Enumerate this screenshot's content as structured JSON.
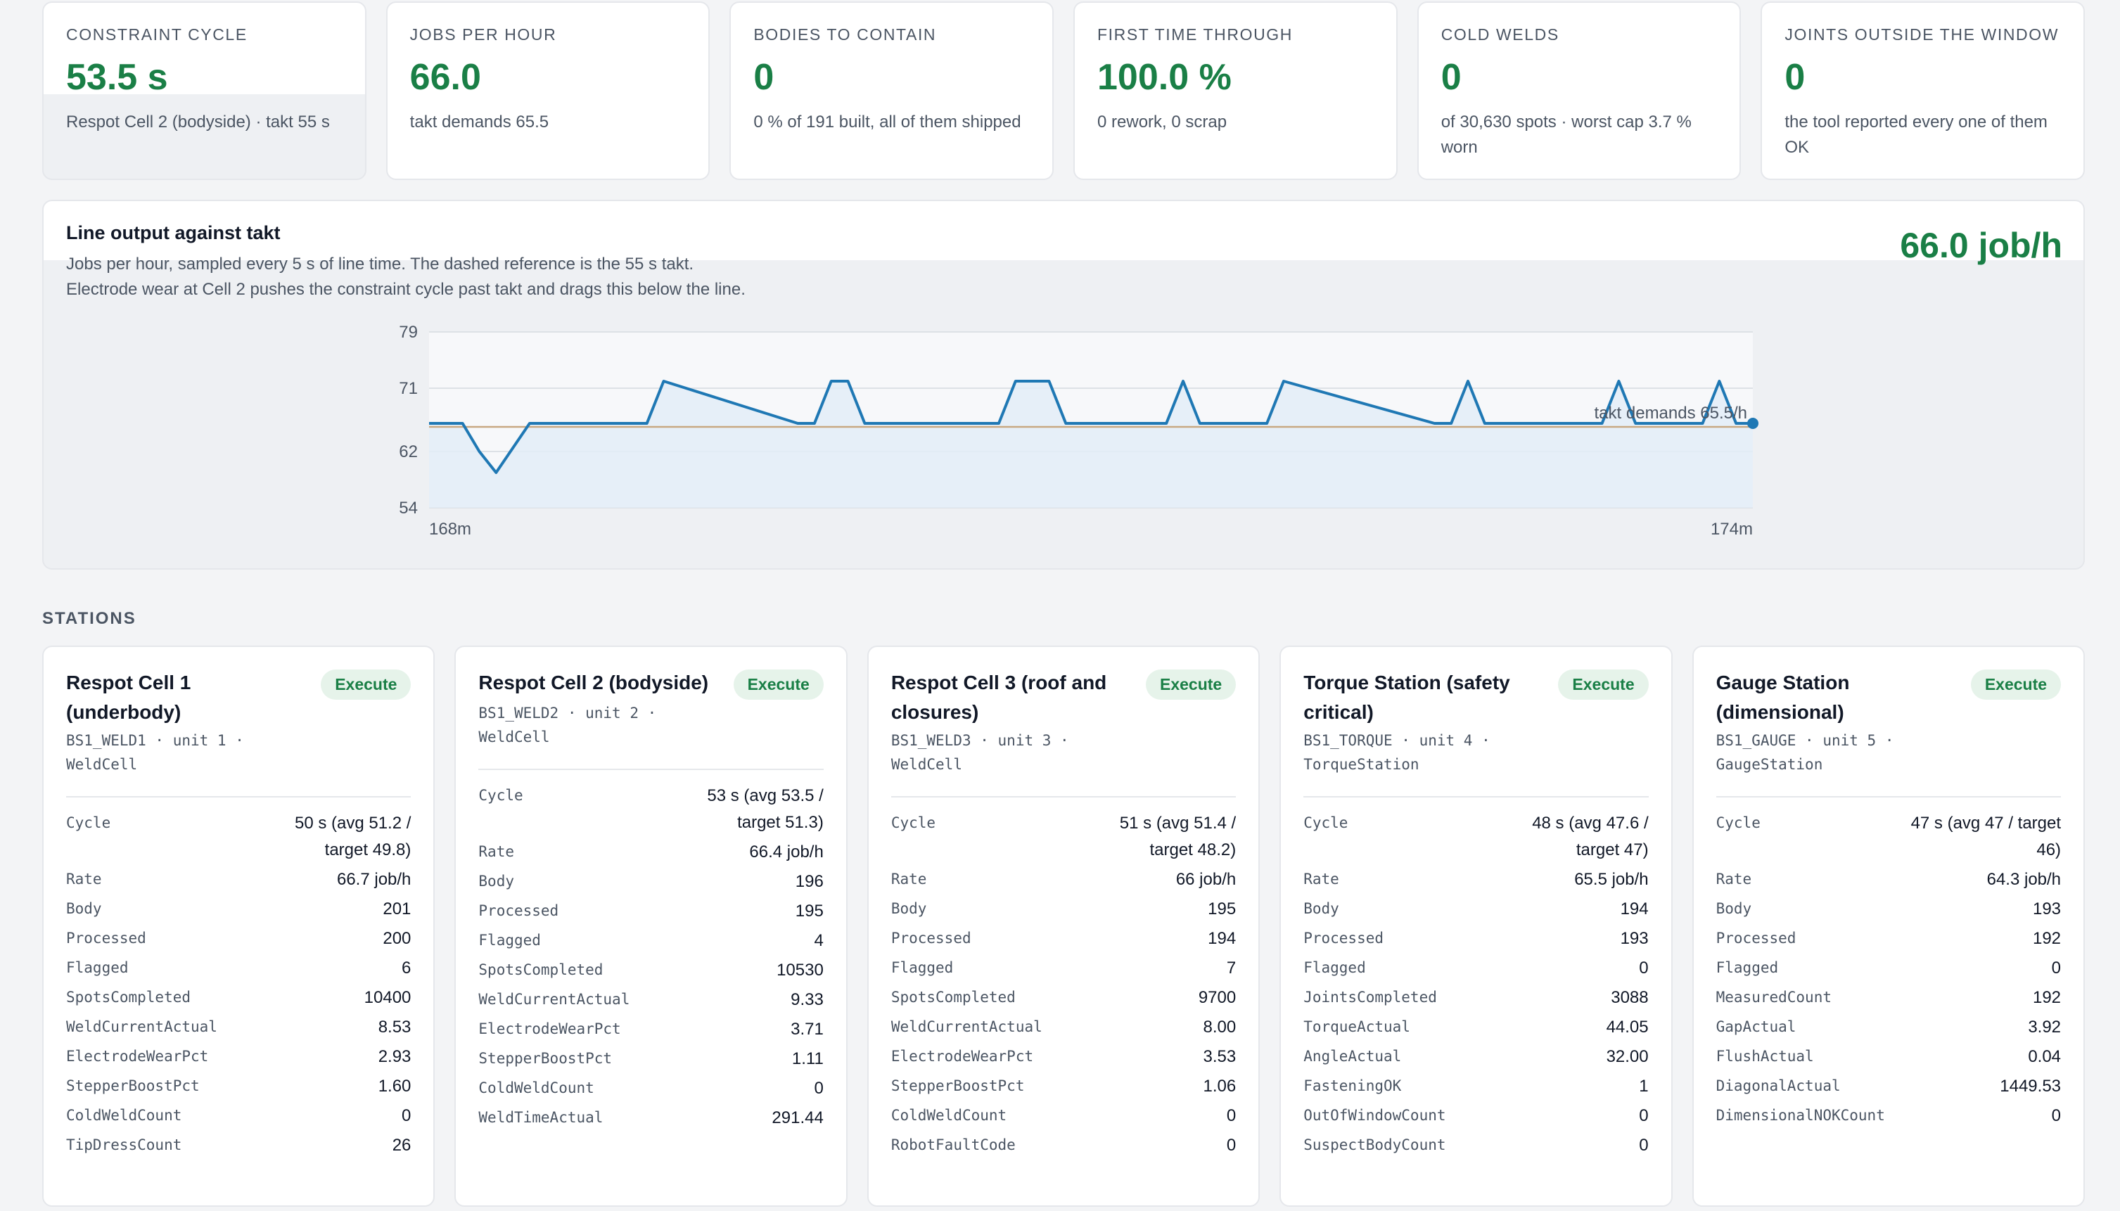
{
  "kpis": [
    {
      "label": "Constraint cycle",
      "value": "53.5 s",
      "sub": "Respot Cell 2 (bodyside) · takt 55 s"
    },
    {
      "label": "Jobs per hour",
      "value": "66.0",
      "sub": "takt demands 65.5"
    },
    {
      "label": "Bodies to contain",
      "value": "0",
      "sub": "0 % of 191 built, all of them shipped"
    },
    {
      "label": "First time through",
      "value": "100.0 %",
      "sub": "0 rework, 0 scrap"
    },
    {
      "label": "Cold welds",
      "value": "0",
      "sub": "of 30,630 spots · worst cap 3.7 % worn"
    },
    {
      "label": "Joints outside the window",
      "value": "0",
      "sub": "the tool reported every one of them OK"
    }
  ],
  "chart_panel": {
    "title": "Line output against takt",
    "subtitle_line1": "Jobs per hour, sampled every 5 s of line time. The dashed reference is the 55 s takt.",
    "subtitle_line2": "Electrode wear at Cell 2 pushes the constraint cycle past takt and drags this below the line.",
    "current_value": "66.0 job/h",
    "takt_label": "takt demands 65.5/h"
  },
  "chart_data": {
    "type": "area",
    "ylim": [
      54,
      79
    ],
    "yticks": [
      "79",
      "71",
      "62",
      "54"
    ],
    "xticks": [
      "168m",
      "174m"
    ],
    "takt": 65.5,
    "series_color": "#1f78b4",
    "takt_color": "#c8a882",
    "x": [
      0,
      2,
      3,
      4,
      6,
      7,
      12,
      13,
      14,
      22,
      23,
      24,
      25,
      26,
      34,
      35,
      36,
      37,
      38,
      44,
      45,
      46,
      49,
      50,
      51,
      60,
      61,
      62,
      63,
      64,
      70,
      71,
      72,
      73,
      74,
      76,
      77,
      78,
      79
    ],
    "values": [
      66,
      66,
      62,
      59,
      66,
      66,
      66,
      66,
      72,
      66,
      66,
      72,
      72,
      66,
      66,
      72,
      72,
      72,
      66,
      66,
      72,
      66,
      66,
      66,
      72,
      66,
      66,
      72,
      66,
      66,
      66,
      72,
      66,
      66,
      66,
      66,
      72,
      66,
      66
    ]
  },
  "stations_label": "Stations",
  "stations": [
    {
      "name": "Respot Cell 1 (underbody)",
      "badge": "Execute",
      "meta": "BS1_WELD1 · unit 1 · WeldCell",
      "metrics": [
        {
          "k": "Cycle",
          "v": "50 s (avg 51.2 / target 49.8)"
        },
        {
          "k": "Rate",
          "v": "66.7 job/h"
        },
        {
          "k": "Body",
          "v": "201"
        },
        {
          "k": "Processed",
          "v": "200"
        },
        {
          "k": "Flagged",
          "v": "6"
        },
        {
          "k": "SpotsCompleted",
          "v": "10400"
        },
        {
          "k": "WeldCurrentActual",
          "v": "8.53"
        },
        {
          "k": "ElectrodeWearPct",
          "v": "2.93"
        },
        {
          "k": "StepperBoostPct",
          "v": "1.60"
        },
        {
          "k": "ColdWeldCount",
          "v": "0"
        },
        {
          "k": "TipDressCount",
          "v": "26"
        }
      ]
    },
    {
      "name": "Respot Cell 2 (bodyside)",
      "badge": "Execute",
      "meta": "BS1_WELD2 · unit 2 · WeldCell",
      "metrics": [
        {
          "k": "Cycle",
          "v": "53 s (avg 53.5 / target 51.3)"
        },
        {
          "k": "Rate",
          "v": "66.4 job/h"
        },
        {
          "k": "Body",
          "v": "196"
        },
        {
          "k": "Processed",
          "v": "195"
        },
        {
          "k": "Flagged",
          "v": "4"
        },
        {
          "k": "SpotsCompleted",
          "v": "10530"
        },
        {
          "k": "WeldCurrentActual",
          "v": "9.33"
        },
        {
          "k": "ElectrodeWearPct",
          "v": "3.71"
        },
        {
          "k": "StepperBoostPct",
          "v": "1.11"
        },
        {
          "k": "ColdWeldCount",
          "v": "0"
        },
        {
          "k": "WeldTimeActual",
          "v": "291.44"
        }
      ]
    },
    {
      "name": "Respot Cell 3 (roof and closures)",
      "badge": "Execute",
      "meta": "BS1_WELD3 · unit 3 · WeldCell",
      "metrics": [
        {
          "k": "Cycle",
          "v": "51 s (avg 51.4 / target 48.2)"
        },
        {
          "k": "Rate",
          "v": "66 job/h"
        },
        {
          "k": "Body",
          "v": "195"
        },
        {
          "k": "Processed",
          "v": "194"
        },
        {
          "k": "Flagged",
          "v": "7"
        },
        {
          "k": "SpotsCompleted",
          "v": "9700"
        },
        {
          "k": "WeldCurrentActual",
          "v": "8.00"
        },
        {
          "k": "ElectrodeWearPct",
          "v": "3.53"
        },
        {
          "k": "StepperBoostPct",
          "v": "1.06"
        },
        {
          "k": "ColdWeldCount",
          "v": "0"
        },
        {
          "k": "RobotFaultCode",
          "v": "0"
        }
      ]
    },
    {
      "name": "Torque Station (safety critical)",
      "badge": "Execute",
      "meta": "BS1_TORQUE · unit 4 · TorqueStation",
      "metrics": [
        {
          "k": "Cycle",
          "v": "48 s (avg 47.6 / target 47)"
        },
        {
          "k": "Rate",
          "v": "65.5 job/h"
        },
        {
          "k": "Body",
          "v": "194"
        },
        {
          "k": "Processed",
          "v": "193"
        },
        {
          "k": "Flagged",
          "v": "0"
        },
        {
          "k": "JointsCompleted",
          "v": "3088"
        },
        {
          "k": "TorqueActual",
          "v": "44.05"
        },
        {
          "k": "AngleActual",
          "v": "32.00"
        },
        {
          "k": "FasteningOK",
          "v": "1"
        },
        {
          "k": "OutOfWindowCount",
          "v": "0"
        },
        {
          "k": "SuspectBodyCount",
          "v": "0"
        }
      ]
    },
    {
      "name": "Gauge Station (dimensional)",
      "badge": "Execute",
      "meta": "BS1_GAUGE · unit 5 · GaugeStation",
      "metrics": [
        {
          "k": "Cycle",
          "v": "47 s (avg 47 / target 46)"
        },
        {
          "k": "Rate",
          "v": "64.3 job/h"
        },
        {
          "k": "Body",
          "v": "193"
        },
        {
          "k": "Processed",
          "v": "192"
        },
        {
          "k": "Flagged",
          "v": "0"
        },
        {
          "k": "MeasuredCount",
          "v": "192"
        },
        {
          "k": "GapActual",
          "v": "3.92"
        },
        {
          "k": "FlushActual",
          "v": "0.04"
        },
        {
          "k": "DiagonalActual",
          "v": "1449.53"
        },
        {
          "k": "DimensionalNOKCount",
          "v": "0"
        }
      ]
    }
  ]
}
